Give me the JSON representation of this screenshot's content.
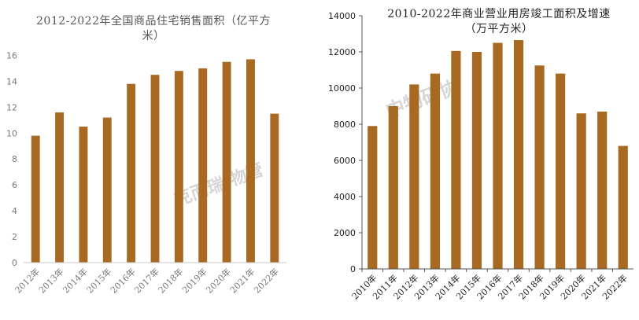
{
  "chart_data": [
    {
      "type": "bar",
      "title": "2012-2022年全国商品住宅销售面积（亿平方米）",
      "title_lines": [
        "2012-2022年全国商品住宅销售面积（亿平方",
        "米）"
      ],
      "categories": [
        "2012年",
        "2013年",
        "2014年",
        "2015年",
        "2016年",
        "2017年",
        "2018年",
        "2019年",
        "2020年",
        "2021年",
        "2022年"
      ],
      "values": [
        9.8,
        11.6,
        10.5,
        11.2,
        13.8,
        14.5,
        14.8,
        15.0,
        15.5,
        15.7,
        11.5
      ],
      "yticks": [
        0,
        2,
        4,
        6,
        8,
        10,
        12,
        14,
        16
      ],
      "ylim": [
        0,
        17
      ],
      "xlabel": "",
      "ylabel": "",
      "grid": false,
      "bar_color": "#a86a22",
      "watermark": "克而瑞·物管"
    },
    {
      "type": "bar",
      "title": "2010-2022年商业营业用房竣工面积及增速（万平方米）",
      "title_lines": [
        "2010-2022年商业营业用房竣工面积及增速",
        "（万平方米）"
      ],
      "categories": [
        "2010年",
        "2011年",
        "2012年",
        "2013年",
        "2014年",
        "2015年",
        "2016年",
        "2017年",
        "2018年",
        "2019年",
        "2020年",
        "2021年",
        "2022年"
      ],
      "values": [
        7900,
        9000,
        10200,
        10800,
        12050,
        12000,
        12500,
        12650,
        11250,
        10800,
        8600,
        8700,
        6800
      ],
      "yticks": [
        0,
        2000,
        4000,
        6000,
        8000,
        10000,
        12000,
        14000
      ],
      "ylim": [
        0,
        14000
      ],
      "xlabel": "",
      "ylabel": "",
      "grid": false,
      "bar_color": "#a86a22",
      "watermark": "中物研协"
    }
  ]
}
